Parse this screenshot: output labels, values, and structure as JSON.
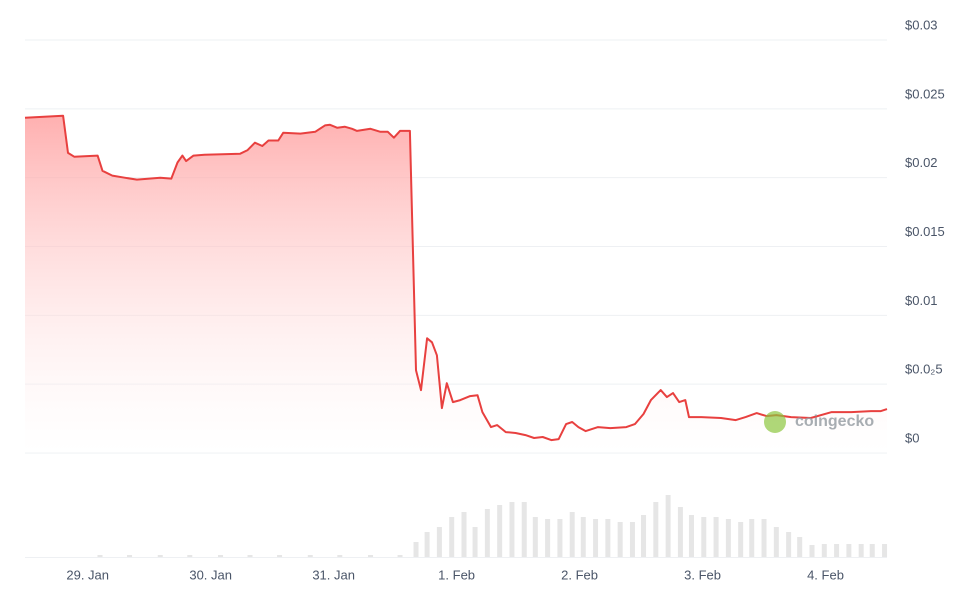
{
  "chart_data": [
    {
      "type": "line",
      "color": "#e8403f",
      "fill": true,
      "grid": true,
      "watermark": "coingecko",
      "x": [
        -0.51,
        -0.2,
        -0.16,
        -0.11,
        0.08,
        0.12,
        0.2,
        0.3,
        0.4,
        0.59,
        0.68,
        0.73,
        0.77,
        0.8,
        0.86,
        0.95,
        1.24,
        1.3,
        1.36,
        1.42,
        1.47,
        1.55,
        1.59,
        1.73,
        1.85,
        1.93,
        1.97,
        2.03,
        2.09,
        2.15,
        2.19,
        2.3,
        2.38,
        2.44,
        2.49,
        2.54,
        2.62,
        2.67,
        2.71,
        2.76,
        2.8,
        2.84,
        2.88,
        2.92,
        2.97,
        3.03,
        3.11,
        3.17,
        3.21,
        3.28,
        3.33,
        3.4,
        3.48,
        3.56,
        3.63,
        3.7,
        3.77,
        3.83,
        3.89,
        3.94,
        3.99,
        4.05,
        4.15,
        4.25,
        4.38,
        4.45,
        4.52,
        4.58,
        4.66,
        4.71,
        4.76,
        4.81,
        4.86,
        4.89,
        4.99,
        5.15,
        5.27,
        5.35,
        5.44,
        5.52,
        5.6,
        5.72,
        5.88,
        6.05,
        6.21,
        6.37,
        6.45,
        6.5
      ],
      "values": [
        0.02435,
        0.0245,
        0.0218,
        0.02152,
        0.0216,
        0.0205,
        0.02015,
        0.02,
        0.01986,
        0.02,
        0.01993,
        0.0211,
        0.0216,
        0.0212,
        0.0216,
        0.02167,
        0.02174,
        0.022,
        0.02254,
        0.0223,
        0.0227,
        0.0227,
        0.02326,
        0.0232,
        0.02333,
        0.0238,
        0.02384,
        0.02362,
        0.0237,
        0.02355,
        0.0234,
        0.02355,
        0.02333,
        0.02333,
        0.0229,
        0.0234,
        0.0234,
        0.00601,
        0.00457,
        0.00833,
        0.00804,
        0.0071,
        0.00326,
        0.00507,
        0.0037,
        0.00384,
        0.00413,
        0.0042,
        0.00297,
        0.00188,
        0.00203,
        0.00152,
        0.00145,
        0.0013,
        0.00109,
        0.00116,
        0.00094,
        0.00101,
        0.0021,
        0.00225,
        0.00188,
        0.00159,
        0.00188,
        0.00181,
        0.00188,
        0.0021,
        0.00283,
        0.00384,
        0.00457,
        0.00406,
        0.00435,
        0.0037,
        0.00384,
        0.00261,
        0.00261,
        0.00254,
        0.00239,
        0.00261,
        0.0029,
        0.00268,
        0.00275,
        0.00261,
        0.00254,
        0.00297,
        0.00297,
        0.00304,
        0.00304,
        0.00319
      ],
      "xlim": [
        -0.51,
        6.5
      ],
      "xticks": [
        {
          "value": 0,
          "label": "29. Jan"
        },
        {
          "value": 1,
          "label": "30. Jan"
        },
        {
          "value": 2,
          "label": "31. Jan"
        },
        {
          "value": 3,
          "label": "1. Feb"
        },
        {
          "value": 4,
          "label": "2. Feb"
        },
        {
          "value": 5,
          "label": "3. Feb"
        },
        {
          "value": 6,
          "label": "4. Feb"
        }
      ],
      "ylim": [
        0,
        0.03
      ],
      "yticks": [
        {
          "value": 0,
          "label": "$0"
        },
        {
          "value": 0.005,
          "label": "$0.0₂5"
        },
        {
          "value": 0.01,
          "label": "$0.01"
        },
        {
          "value": 0.015,
          "label": "$0.015"
        },
        {
          "value": 0.02,
          "label": "$0.02"
        },
        {
          "value": 0.025,
          "label": "$0.025"
        },
        {
          "value": 0.03,
          "label": "$0.03"
        }
      ]
    },
    {
      "type": "bar",
      "color": "#e6e6e6",
      "x": [
        0.1,
        0.34,
        0.59,
        0.83,
        1.08,
        1.32,
        1.56,
        1.81,
        2.05,
        2.3,
        2.54,
        2.67,
        2.76,
        2.86,
        2.96,
        3.06,
        3.15,
        3.25,
        3.35,
        3.45,
        3.55,
        3.64,
        3.74,
        3.84,
        3.94,
        4.03,
        4.13,
        4.23,
        4.33,
        4.43,
        4.52,
        4.62,
        4.72,
        4.82,
        4.91,
        5.01,
        5.11,
        5.21,
        5.31,
        5.4,
        5.5,
        5.6,
        5.7,
        5.79,
        5.89,
        5.99,
        6.09,
        6.19,
        6.29,
        6.38,
        6.48
      ],
      "values": [
        2,
        2,
        2,
        2,
        2,
        2,
        2,
        2,
        2,
        2,
        2,
        15,
        25,
        30,
        40,
        45,
        30,
        48,
        52,
        55,
        55,
        40,
        38,
        38,
        45,
        40,
        38,
        38,
        35,
        35,
        42,
        55,
        62,
        50,
        42,
        40,
        40,
        38,
        35,
        38,
        38,
        30,
        25,
        20,
        12,
        13,
        13,
        13,
        13,
        13,
        13
      ],
      "xlim": [
        -0.51,
        6.5
      ],
      "ylim": [
        0,
        70
      ]
    }
  ]
}
